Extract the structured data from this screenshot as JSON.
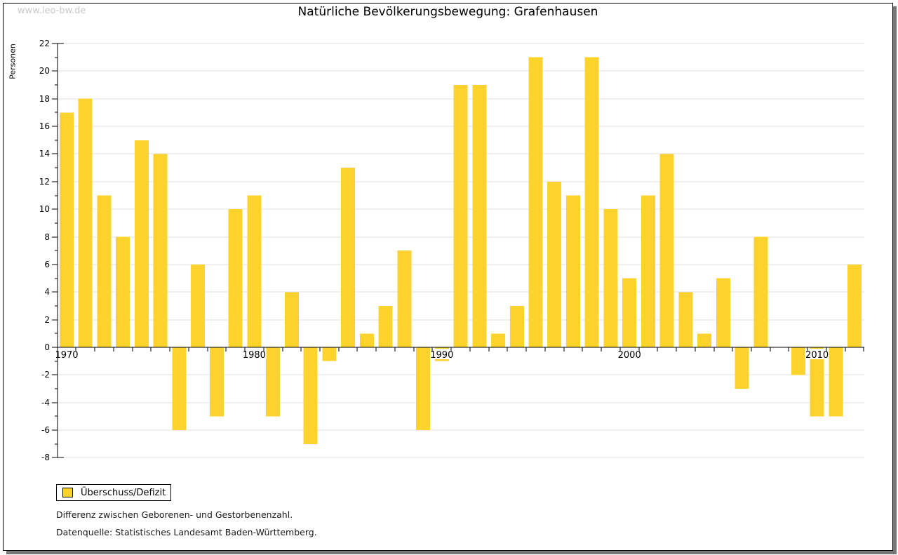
{
  "page": {
    "watermark": "www.leo-bw.de",
    "title": "Natürliche Bevölkerungsbewegung: Grafenhausen"
  },
  "chart_data": {
    "type": "bar",
    "title": "Natürliche Bevölkerungsbewegung: Grafenhausen",
    "xlabel": "",
    "ylabel": "Personen",
    "ylim": [
      -8,
      22
    ],
    "ytick_step": 2,
    "grid": true,
    "legend_position": "bottom-left",
    "legend_entries": [
      "Überschuss/Defizit"
    ],
    "xtick_years": [
      1970,
      1980,
      1990,
      2000,
      2010
    ],
    "years": [
      1970,
      1971,
      1972,
      1973,
      1974,
      1975,
      1976,
      1977,
      1978,
      1979,
      1980,
      1981,
      1982,
      1983,
      1984,
      1985,
      1986,
      1987,
      1988,
      1989,
      1990,
      1991,
      1992,
      1993,
      1994,
      1995,
      1996,
      1997,
      1998,
      1999,
      2000,
      2001,
      2002,
      2003,
      2004,
      2005,
      2006,
      2007,
      2008,
      2009,
      2010,
      2011,
      2012
    ],
    "values": [
      17,
      18,
      11,
      8,
      15,
      14,
      -6,
      6,
      -5,
      10,
      11,
      -5,
      4,
      -7,
      -1,
      13,
      1,
      3,
      7,
      -6,
      -1,
      19,
      19,
      1,
      3,
      21,
      12,
      11,
      21,
      10,
      5,
      11,
      14,
      4,
      1,
      5,
      -3,
      8,
      0,
      -2,
      -5,
      -5,
      6
    ]
  },
  "legend": {
    "label": "Überschuss/Defizit"
  },
  "footnotes": {
    "line1": "Differenz zwischen Geborenen- und Gestorbenenzahl.",
    "line2": "Datenquelle: Statistisches Landesamt Baden-Württemberg."
  },
  "colors": {
    "bar": "#fcd32d",
    "grid": "#e0e0e0",
    "axis": "#000000",
    "watermark": "#c9c9c9",
    "frame_shadow": "#777777"
  }
}
